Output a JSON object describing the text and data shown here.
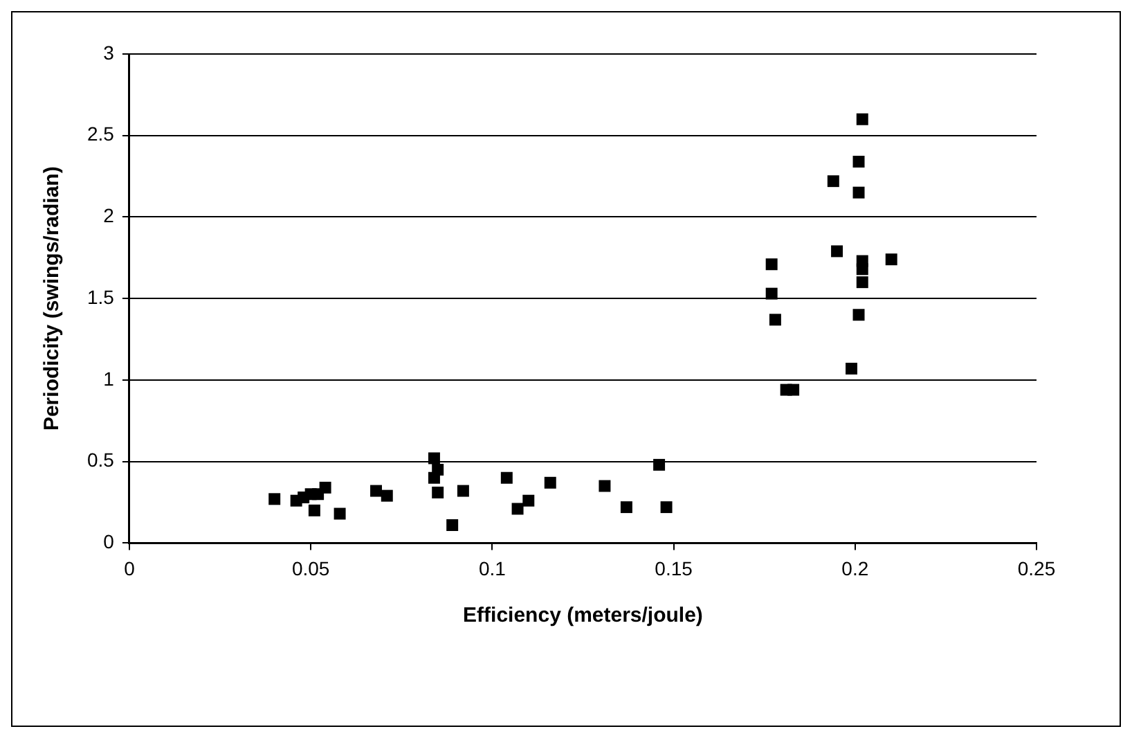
{
  "chart_data": {
    "type": "scatter",
    "xlabel": "Efficiency (meters/joule)",
    "ylabel": "Periodicity (swings/radian)",
    "xlim": [
      0,
      0.25
    ],
    "xticks": [
      0,
      0.05,
      0.1,
      0.15,
      0.2,
      0.25
    ],
    "ylim": [
      0,
      3
    ],
    "yticks": [
      0,
      0.5,
      1,
      1.5,
      2,
      2.5,
      3
    ],
    "grid": "y",
    "legend": false,
    "marker": "square",
    "series": [
      {
        "color": "#000000",
        "x": [
          0.04,
          0.046,
          0.048,
          0.05,
          0.051,
          0.052,
          0.054,
          0.058,
          0.068,
          0.071,
          0.084,
          0.084,
          0.085,
          0.085,
          0.089,
          0.092,
          0.104,
          0.107,
          0.11,
          0.116,
          0.131,
          0.137,
          0.146,
          0.148,
          0.177,
          0.177,
          0.178,
          0.181,
          0.183,
          0.194,
          0.195,
          0.199,
          0.201,
          0.201,
          0.202,
          0.202,
          0.202,
          0.202,
          0.201,
          0.21
        ],
        "values": [
          0.27,
          0.26,
          0.28,
          0.3,
          0.2,
          0.3,
          0.34,
          0.18,
          0.32,
          0.29,
          0.52,
          0.4,
          0.45,
          0.31,
          0.11,
          0.32,
          0.4,
          0.21,
          0.26,
          0.37,
          0.35,
          0.22,
          0.48,
          0.22,
          1.71,
          1.53,
          1.37,
          0.94,
          0.94,
          2.22,
          1.79,
          1.07,
          2.34,
          2.15,
          2.6,
          1.73,
          1.68,
          1.6,
          1.4,
          1.74
        ]
      }
    ]
  }
}
